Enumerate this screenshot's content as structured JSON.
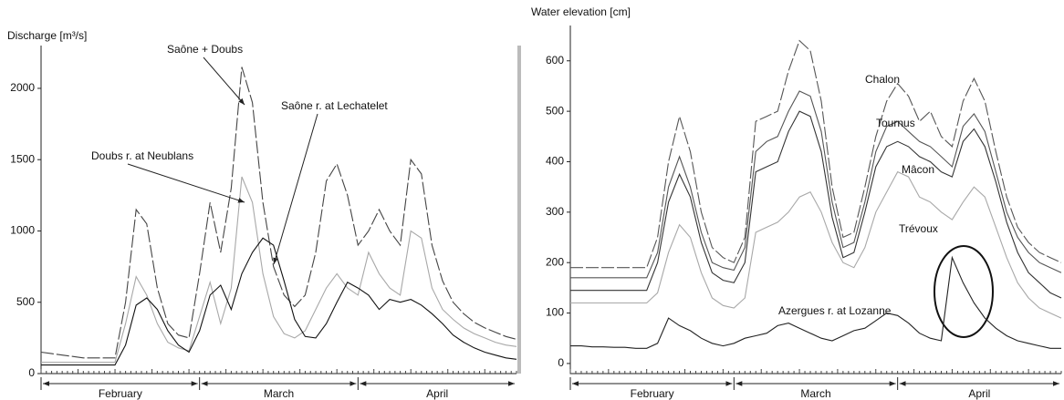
{
  "chart_data": [
    {
      "type": "line",
      "y_label": "Discharge [m³/s]",
      "x_labels": [
        "February",
        "March",
        "April"
      ],
      "ylim": [
        0,
        2300
      ],
      "yticks": [
        0,
        500,
        1000,
        1500,
        2000
      ],
      "series": [
        {
          "name": "Saône + Doubs",
          "color": "#444444",
          "dashed": true,
          "values": [
            150,
            140,
            130,
            120,
            110,
            110,
            110,
            110,
            500,
            1150,
            1050,
            600,
            350,
            270,
            250,
            700,
            1200,
            850,
            1300,
            2150,
            1900,
            1200,
            750,
            550,
            470,
            550,
            850,
            1350,
            1470,
            1250,
            900,
            1000,
            1150,
            1000,
            900,
            1500,
            1400,
            900,
            650,
            500,
            420,
            360,
            320,
            290,
            260,
            240
          ]
        },
        {
          "name": "Doubs r. at Neublans",
          "color": "#a8a8a8",
          "dashed": false,
          "values": [
            80,
            80,
            80,
            80,
            80,
            80,
            80,
            80,
            350,
            680,
            550,
            350,
            220,
            180,
            160,
            400,
            640,
            350,
            600,
            1380,
            1200,
            700,
            400,
            280,
            250,
            300,
            450,
            600,
            700,
            600,
            550,
            850,
            700,
            600,
            550,
            1000,
            950,
            600,
            450,
            380,
            320,
            280,
            250,
            220,
            200,
            190
          ]
        },
        {
          "name": "Saône r. at Lechatelet",
          "color": "#111111",
          "dashed": false,
          "values": [
            60,
            60,
            60,
            60,
            60,
            60,
            60,
            60,
            200,
            480,
            530,
            450,
            300,
            200,
            150,
            300,
            550,
            620,
            450,
            700,
            850,
            950,
            900,
            650,
            380,
            260,
            250,
            350,
            500,
            640,
            600,
            550,
            450,
            520,
            500,
            520,
            480,
            420,
            350,
            270,
            220,
            180,
            150,
            130,
            110,
            100
          ]
        }
      ]
    },
    {
      "type": "line",
      "y_label": "Water elevation [cm]",
      "x_labels": [
        "February",
        "March",
        "April"
      ],
      "ylim": [
        -20,
        670
      ],
      "yticks": [
        0,
        100,
        200,
        300,
        400,
        500,
        600
      ],
      "series": [
        {
          "name": "Chalon",
          "color": "#555555",
          "dashed": true,
          "values": [
            190,
            190,
            190,
            190,
            190,
            190,
            190,
            190,
            250,
            400,
            490,
            420,
            300,
            230,
            210,
            200,
            250,
            480,
            490,
            500,
            580,
            640,
            620,
            520,
            350,
            250,
            260,
            350,
            450,
            520,
            555,
            530,
            480,
            500,
            450,
            430,
            520,
            565,
            520,
            420,
            330,
            270,
            240,
            220,
            210,
            200
          ]
        },
        {
          "name": "Tournus",
          "color": "#555555",
          "dashed": false,
          "values": [
            170,
            170,
            170,
            170,
            170,
            170,
            170,
            170,
            220,
            350,
            410,
            350,
            260,
            200,
            190,
            185,
            230,
            420,
            440,
            450,
            500,
            540,
            530,
            460,
            320,
            230,
            240,
            320,
            420,
            470,
            480,
            460,
            440,
            430,
            410,
            390,
            470,
            495,
            460,
            380,
            300,
            250,
            220,
            200,
            190,
            180
          ]
        },
        {
          "name": "Mâcon",
          "color": "#333333",
          "dashed": false,
          "values": [
            145,
            145,
            145,
            145,
            145,
            145,
            145,
            145,
            200,
            320,
            375,
            330,
            240,
            180,
            165,
            160,
            200,
            380,
            390,
            400,
            460,
            500,
            490,
            420,
            290,
            210,
            220,
            300,
            390,
            430,
            440,
            430,
            410,
            400,
            380,
            370,
            440,
            465,
            430,
            360,
            280,
            220,
            180,
            160,
            140,
            130
          ]
        },
        {
          "name": "Trévoux",
          "color": "#a8a8a8",
          "dashed": false,
          "values": [
            120,
            120,
            120,
            120,
            120,
            120,
            120,
            120,
            140,
            220,
            275,
            250,
            180,
            130,
            115,
            110,
            130,
            260,
            270,
            280,
            300,
            330,
            340,
            300,
            240,
            200,
            190,
            230,
            300,
            340,
            380,
            370,
            330,
            320,
            300,
            285,
            320,
            350,
            330,
            270,
            210,
            160,
            130,
            110,
            100,
            90
          ]
        },
        {
          "name": "Azergues r. at Lozanne",
          "color": "#222222",
          "dashed": false,
          "values": [
            35,
            35,
            33,
            33,
            32,
            32,
            30,
            30,
            40,
            90,
            75,
            65,
            50,
            40,
            35,
            40,
            50,
            55,
            60,
            75,
            80,
            70,
            60,
            50,
            45,
            55,
            65,
            70,
            85,
            100,
            95,
            80,
            60,
            50,
            45,
            210,
            160,
            120,
            90,
            70,
            55,
            45,
            40,
            35,
            30,
            30
          ]
        }
      ]
    }
  ]
}
